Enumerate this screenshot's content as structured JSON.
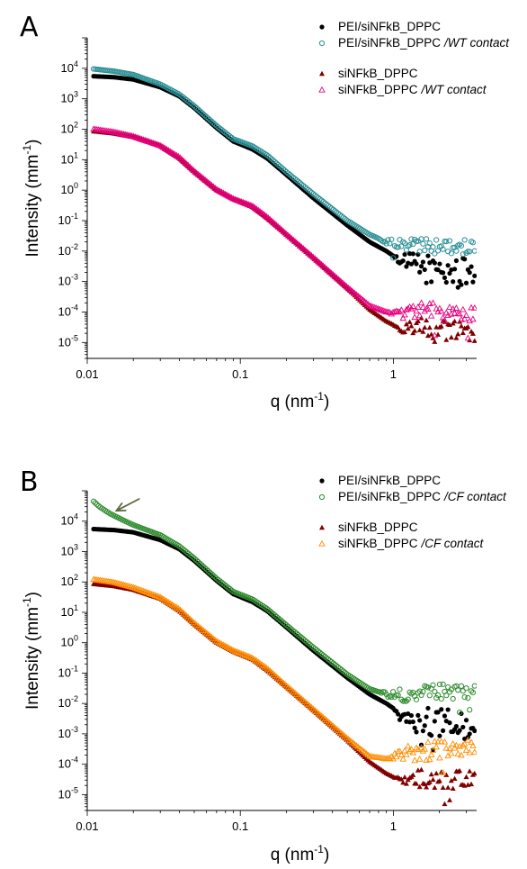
{
  "figure": {
    "panels": [
      {
        "label": "A",
        "ylabel": "Intensity (mm",
        "ylabel_sup": "-1",
        "ylabel_tail": ")",
        "xlabel": "q (nm",
        "xlabel_sup": "-1",
        "xlabel_tail": ")"
      },
      {
        "label": "B",
        "ylabel": "Intensity (mm",
        "ylabel_sup": "-1",
        "ylabel_tail": ")",
        "xlabel": "q (nm",
        "xlabel_sup": "-1",
        "xlabel_tail": ")"
      }
    ]
  },
  "chart_data": [
    {
      "type": "scatter",
      "panel": "A",
      "x_scale": "log",
      "y_scale": "log",
      "xlim": [
        0.01,
        3.5
      ],
      "ylim": [
        3e-06,
        100000
      ],
      "x_ticks": [
        {
          "value": 0.01,
          "label": "0.01"
        },
        {
          "value": 0.1,
          "label": "0.1"
        },
        {
          "value": 1,
          "label": "1"
        }
      ],
      "y_ticks": [
        {
          "value": 1e-05,
          "base": "10",
          "exp": "-5"
        },
        {
          "value": 0.0001,
          "base": "10",
          "exp": "-4"
        },
        {
          "value": 0.001,
          "base": "10",
          "exp": "-3"
        },
        {
          "value": 0.01,
          "base": "10",
          "exp": "-2"
        },
        {
          "value": 0.1,
          "base": "10",
          "exp": "-1"
        },
        {
          "value": 1,
          "base": "10",
          "exp": "0"
        },
        {
          "value": 10,
          "base": "10",
          "exp": "1"
        },
        {
          "value": 100,
          "base": "10",
          "exp": "2"
        },
        {
          "value": 1000,
          "base": "10",
          "exp": "3"
        },
        {
          "value": 10000,
          "base": "10",
          "exp": "4"
        }
      ],
      "legend_position": "top-right",
      "series": [
        {
          "legend_main": "PEI/siNFkB_DPPC",
          "legend_italic": "",
          "marker": "filled-circle",
          "color": "#000000",
          "points": [
            [
              0.011,
              5500
            ],
            [
              0.015,
              5100
            ],
            [
              0.02,
              4300
            ],
            [
              0.03,
              2400
            ],
            [
              0.04,
              1200
            ],
            [
              0.05,
              500
            ],
            [
              0.07,
              110
            ],
            [
              0.09,
              40
            ],
            [
              0.12,
              22
            ],
            [
              0.15,
              11
            ],
            [
              0.2,
              3.2
            ],
            [
              0.3,
              0.55
            ],
            [
              0.5,
              0.07
            ],
            [
              0.7,
              0.02
            ],
            [
              0.9,
              0.01
            ],
            [
              1.1,
              0.005
            ],
            [
              1.5,
              0.003
            ],
            [
              2.0,
              0.0022
            ],
            [
              3.0,
              0.0018
            ]
          ],
          "noise_from": 1.0,
          "noise_level": 0.0018,
          "noise_spread": 0.5
        },
        {
          "legend_main": "PEI/siNFkB_DPPC",
          "legend_italic": "/WT contact",
          "marker": "open-circle",
          "color": "#2a8f94",
          "points": [
            [
              0.011,
              9500
            ],
            [
              0.015,
              8000
            ],
            [
              0.02,
              6200
            ],
            [
              0.03,
              3000
            ],
            [
              0.04,
              1400
            ],
            [
              0.05,
              580
            ],
            [
              0.07,
              130
            ],
            [
              0.09,
              48
            ],
            [
              0.12,
              28
            ],
            [
              0.15,
              14
            ],
            [
              0.2,
              4
            ],
            [
              0.3,
              0.75
            ],
            [
              0.5,
              0.1
            ],
            [
              0.7,
              0.035
            ],
            [
              0.9,
              0.02
            ],
            [
              1.1,
              0.016
            ],
            [
              1.5,
              0.015
            ],
            [
              2.0,
              0.014
            ],
            [
              3.0,
              0.014
            ]
          ],
          "noise_from": 0.8,
          "noise_level": 0.014,
          "noise_spread": 0.25
        },
        {
          "legend_main": "siNFkB_DPPC",
          "legend_italic": "",
          "marker": "filled-triangle",
          "color": "#800000",
          "points": [
            [
              0.011,
              85
            ],
            [
              0.015,
              72
            ],
            [
              0.02,
              55
            ],
            [
              0.03,
              28
            ],
            [
              0.04,
              11
            ],
            [
              0.05,
              4
            ],
            [
              0.07,
              1
            ],
            [
              0.09,
              0.5
            ],
            [
              0.12,
              0.28
            ],
            [
              0.15,
              0.12
            ],
            [
              0.2,
              0.035
            ],
            [
              0.3,
              0.006
            ],
            [
              0.5,
              0.0006
            ],
            [
              0.7,
              0.00012
            ],
            [
              0.9,
              5e-05
            ],
            [
              1.1,
              3e-05
            ],
            [
              1.5,
              3e-05
            ],
            [
              2.0,
              2.5e-05
            ],
            [
              3.0,
              2.5e-05
            ]
          ],
          "noise_from": 1.0,
          "noise_level": 2.7e-05,
          "noise_spread": 0.35
        },
        {
          "legend_main": "siNFkB_DPPC",
          "legend_italic": "/WT contact",
          "marker": "open-triangle",
          "color": "#e6007e",
          "points": [
            [
              0.011,
              100
            ],
            [
              0.015,
              80
            ],
            [
              0.02,
              58
            ],
            [
              0.03,
              29
            ],
            [
              0.04,
              12
            ],
            [
              0.05,
              4.2
            ],
            [
              0.07,
              1.05
            ],
            [
              0.09,
              0.52
            ],
            [
              0.12,
              0.3
            ],
            [
              0.15,
              0.13
            ],
            [
              0.2,
              0.036
            ],
            [
              0.3,
              0.0062
            ],
            [
              0.5,
              0.00065
            ],
            [
              0.7,
              0.00016
            ],
            [
              0.9,
              0.0001
            ],
            [
              1.1,
              9e-05
            ],
            [
              1.5,
              0.0001
            ],
            [
              2.0,
              0.0001
            ],
            [
              3.0,
              0.0001
            ]
          ],
          "noise_from": 0.9,
          "noise_level": 0.0001,
          "noise_spread": 0.3
        }
      ]
    },
    {
      "type": "scatter",
      "panel": "B",
      "x_scale": "log",
      "y_scale": "log",
      "xlim": [
        0.01,
        3.5
      ],
      "ylim": [
        3e-06,
        100000
      ],
      "x_ticks": [
        {
          "value": 0.01,
          "label": "0.01"
        },
        {
          "value": 0.1,
          "label": "0.1"
        },
        {
          "value": 1,
          "label": "1"
        }
      ],
      "y_ticks": [
        {
          "value": 1e-05,
          "base": "10",
          "exp": "-5"
        },
        {
          "value": 0.0001,
          "base": "10",
          "exp": "-4"
        },
        {
          "value": 0.001,
          "base": "10",
          "exp": "-3"
        },
        {
          "value": 0.01,
          "base": "10",
          "exp": "-2"
        },
        {
          "value": 0.1,
          "base": "10",
          "exp": "-1"
        },
        {
          "value": 1,
          "base": "10",
          "exp": "0"
        },
        {
          "value": 10,
          "base": "10",
          "exp": "1"
        },
        {
          "value": 100,
          "base": "10",
          "exp": "2"
        },
        {
          "value": 1000,
          "base": "10",
          "exp": "3"
        },
        {
          "value": 10000,
          "base": "10",
          "exp": "4"
        }
      ],
      "legend_position": "top-right",
      "annotation": {
        "type": "arrow",
        "color": "#5a6a3a",
        "from": [
          0.022,
          55000
        ],
        "to": [
          0.0155,
          22000
        ]
      },
      "series": [
        {
          "legend_main": "PEI/siNFkB_DPPC",
          "legend_italic": "",
          "marker": "filled-circle",
          "color": "#000000",
          "points": [
            [
              0.011,
              5500
            ],
            [
              0.015,
              5100
            ],
            [
              0.02,
              4300
            ],
            [
              0.03,
              2400
            ],
            [
              0.04,
              1200
            ],
            [
              0.05,
              500
            ],
            [
              0.07,
              110
            ],
            [
              0.09,
              40
            ],
            [
              0.12,
              22
            ],
            [
              0.15,
              11
            ],
            [
              0.2,
              3.2
            ],
            [
              0.3,
              0.55
            ],
            [
              0.5,
              0.07
            ],
            [
              0.7,
              0.02
            ],
            [
              0.9,
              0.01
            ],
            [
              1.1,
              0.005
            ],
            [
              1.5,
              0.003
            ],
            [
              2.0,
              0.0022
            ],
            [
              3.0,
              0.0018
            ]
          ],
          "noise_from": 1.0,
          "noise_level": 0.0018,
          "noise_spread": 0.5
        },
        {
          "legend_main": "PEI/siNFkB_DPPC",
          "legend_italic": "/CF contact",
          "marker": "open-circle",
          "color": "#2e8b2e",
          "points": [
            [
              0.011,
              45000
            ],
            [
              0.012,
              30000
            ],
            [
              0.014,
              18000
            ],
            [
              0.017,
              11000
            ],
            [
              0.02,
              7500
            ],
            [
              0.03,
              3500
            ],
            [
              0.04,
              1500
            ],
            [
              0.05,
              600
            ],
            [
              0.07,
              130
            ],
            [
              0.09,
              48
            ],
            [
              0.12,
              27
            ],
            [
              0.15,
              13
            ],
            [
              0.2,
              3.8
            ],
            [
              0.3,
              0.7
            ],
            [
              0.5,
              0.09
            ],
            [
              0.7,
              0.03
            ],
            [
              0.9,
              0.02
            ],
            [
              1.1,
              0.02
            ],
            [
              1.5,
              0.022
            ],
            [
              2.0,
              0.024
            ],
            [
              3.0,
              0.025
            ]
          ],
          "noise_from": 0.8,
          "noise_level": 0.023,
          "noise_spread": 0.25
        },
        {
          "legend_main": "siNFkB_DPPC",
          "legend_italic": "",
          "marker": "filled-triangle",
          "color": "#800000",
          "points": [
            [
              0.011,
              85
            ],
            [
              0.015,
              72
            ],
            [
              0.02,
              55
            ],
            [
              0.03,
              28
            ],
            [
              0.04,
              11
            ],
            [
              0.05,
              4
            ],
            [
              0.07,
              1
            ],
            [
              0.09,
              0.5
            ],
            [
              0.12,
              0.28
            ],
            [
              0.15,
              0.12
            ],
            [
              0.2,
              0.035
            ],
            [
              0.3,
              0.006
            ],
            [
              0.5,
              0.0006
            ],
            [
              0.7,
              0.00012
            ],
            [
              0.9,
              5e-05
            ],
            [
              1.1,
              3e-05
            ],
            [
              1.5,
              3e-05
            ],
            [
              2.0,
              3e-05
            ],
            [
              3.0,
              3e-05
            ]
          ],
          "noise_from": 1.0,
          "noise_level": 3.2e-05,
          "noise_spread": 0.35
        },
        {
          "legend_main": "siNFkB_DPPC",
          "legend_italic": "/CF contact",
          "marker": "open-triangle",
          "color": "#ff8c00",
          "points": [
            [
              0.011,
              120
            ],
            [
              0.015,
              95
            ],
            [
              0.02,
              65
            ],
            [
              0.03,
              31
            ],
            [
              0.04,
              12.5
            ],
            [
              0.05,
              4.4
            ],
            [
              0.07,
              1.1
            ],
            [
              0.09,
              0.55
            ],
            [
              0.12,
              0.31
            ],
            [
              0.15,
              0.14
            ],
            [
              0.2,
              0.038
            ],
            [
              0.3,
              0.0065
            ],
            [
              0.5,
              0.0007
            ],
            [
              0.7,
              0.00018
            ],
            [
              0.9,
              0.00015
            ],
            [
              1.1,
              0.0002
            ],
            [
              1.5,
              0.00025
            ],
            [
              2.0,
              0.0003
            ],
            [
              3.0,
              0.00033
            ]
          ],
          "noise_from": 0.9,
          "noise_level": 0.00028,
          "noise_spread": 0.3
        }
      ]
    }
  ]
}
